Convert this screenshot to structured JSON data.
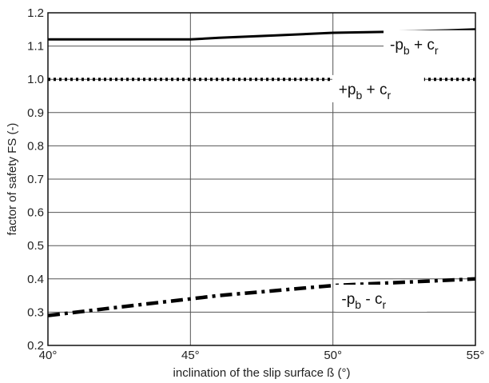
{
  "chart_data": {
    "type": "line",
    "title": "",
    "xlabel": "inclination of the slip surface ß (°)",
    "ylabel": "factor of safety FS (-)",
    "xlim": [
      40,
      55
    ],
    "ylim": [
      0.2,
      1.2
    ],
    "grid": true,
    "x_ticks": [
      40,
      45,
      50,
      55
    ],
    "x_tick_labels": [
      "40°",
      "45°",
      "50°",
      "55°"
    ],
    "y_ticks": [
      0.2,
      0.3,
      0.4,
      0.5,
      0.6,
      0.7,
      0.8,
      0.9,
      1.0,
      1.1,
      1.2
    ],
    "y_tick_labels": [
      "0.2",
      "0.3",
      "0.4",
      "0.5",
      "0.6",
      "0.7",
      "0.8",
      "0.9",
      "1.0",
      "1.1",
      "1.2"
    ],
    "series": [
      {
        "label_sign1": "-",
        "label_p": "p",
        "label_p_sub": "b",
        "label_sign2": " + ",
        "label_c": "c",
        "label_c_sub": "r",
        "style": "solid",
        "label_at": [
          52.0,
          1.09
        ],
        "x": [
          40,
          42,
          44,
          45,
          46,
          48,
          50,
          52,
          54,
          55
        ],
        "y": [
          1.12,
          1.12,
          1.12,
          1.12,
          1.125,
          1.132,
          1.14,
          1.143,
          1.147,
          1.15
        ]
      },
      {
        "label_sign1": "+",
        "label_p": "p",
        "label_p_sub": "b",
        "label_sign2": " + ",
        "label_c": "c",
        "label_c_sub": "r",
        "style": "dotted",
        "label_at": [
          50.2,
          0.955
        ],
        "x": [
          40,
          45,
          50,
          55
        ],
        "y": [
          1.0,
          1.0,
          1.0,
          1.0
        ]
      },
      {
        "label_sign1": "-",
        "label_p": "p",
        "label_p_sub": "b",
        "label_sign2": " - ",
        "label_c": "c",
        "label_c_sub": "r",
        "style": "dashdot",
        "label_at": [
          50.3,
          0.325
        ],
        "x": [
          40,
          42,
          44,
          45,
          46,
          48,
          50,
          52,
          54,
          55
        ],
        "y": [
          0.29,
          0.31,
          0.33,
          0.34,
          0.35,
          0.365,
          0.38,
          0.388,
          0.396,
          0.4
        ]
      }
    ]
  }
}
